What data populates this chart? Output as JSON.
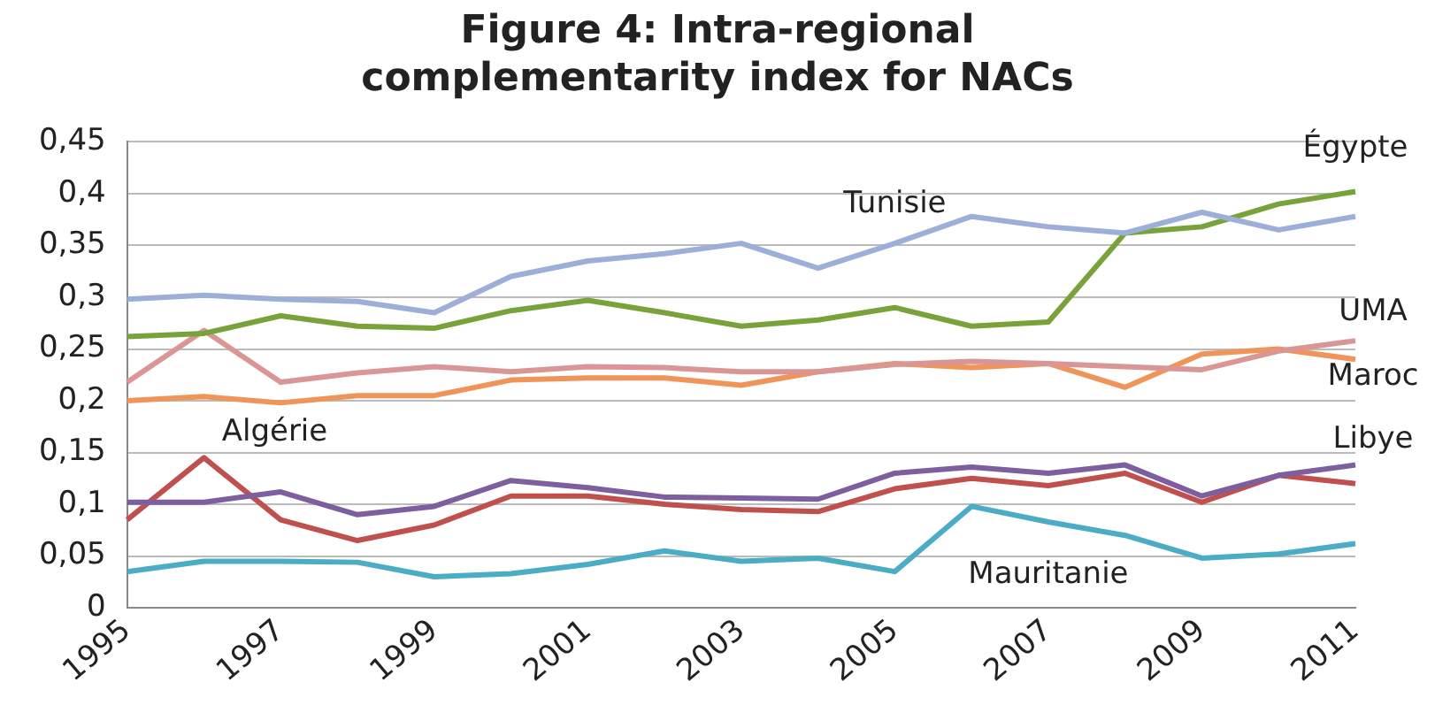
{
  "chart_data": {
    "type": "line",
    "title": "Figure 4: Intra-regional complementarity index for NACs",
    "categories": [
      "1995",
      null,
      "1997",
      null,
      "1999",
      null,
      "2001",
      null,
      "2003",
      null,
      "2005",
      null,
      "2007",
      null,
      "2009",
      null,
      "2011"
    ],
    "ylim": [
      0,
      0.45
    ],
    "yticks": [
      {
        "value": 0,
        "label": "0"
      },
      {
        "value": 0.05,
        "label": "0,05"
      },
      {
        "value": 0.1,
        "label": "0,1"
      },
      {
        "value": 0.15,
        "label": "0,15"
      },
      {
        "value": 0.2,
        "label": "0,2"
      },
      {
        "value": 0.25,
        "label": "0,25"
      },
      {
        "value": 0.3,
        "label": "0,3"
      },
      {
        "value": 0.35,
        "label": "0,35"
      },
      {
        "value": 0.4,
        "label": "0,4"
      },
      {
        "value": 0.45,
        "label": "0,45"
      }
    ],
    "grid": "y",
    "legend": false,
    "marker": "none",
    "line_style": "solid",
    "series": [
      {
        "name": "Tunisie",
        "color": "#9bafd8",
        "values": [
          0.298,
          0.302,
          0.298,
          0.296,
          0.285,
          0.32,
          0.335,
          0.342,
          0.352,
          0.328,
          0.352,
          0.378,
          0.368,
          0.362,
          0.382,
          0.365,
          0.378
        ]
      },
      {
        "name": "Égypte",
        "color": "#77a33a",
        "values": [
          0.262,
          0.265,
          0.282,
          0.272,
          0.27,
          0.287,
          0.297,
          0.285,
          0.272,
          0.278,
          0.29,
          0.272,
          0.276,
          0.362,
          0.368,
          0.39,
          0.402
        ]
      },
      {
        "name": "UMA",
        "color": "#d99694",
        "values": [
          0.218,
          0.268,
          0.218,
          0.227,
          0.233,
          0.228,
          0.233,
          0.232,
          0.228,
          0.228,
          0.235,
          0.238,
          0.236,
          0.233,
          0.23,
          0.248,
          0.258
        ]
      },
      {
        "name": "Maroc",
        "color": "#f0955a",
        "values": [
          0.2,
          0.204,
          0.198,
          0.205,
          0.205,
          0.22,
          0.222,
          0.222,
          0.215,
          0.228,
          0.236,
          0.232,
          0.236,
          0.213,
          0.245,
          0.25,
          0.24
        ]
      },
      {
        "name": "Libye",
        "color": "#7d5fa0",
        "values": [
          0.102,
          0.102,
          0.112,
          0.09,
          0.098,
          0.123,
          0.116,
          0.107,
          0.106,
          0.105,
          0.13,
          0.136,
          0.13,
          0.138,
          0.108,
          0.128,
          0.138
        ]
      },
      {
        "name": "Algérie",
        "color": "#c0504d",
        "values": [
          0.085,
          0.145,
          0.085,
          0.065,
          0.08,
          0.108,
          0.108,
          0.1,
          0.095,
          0.093,
          0.115,
          0.125,
          0.118,
          0.13,
          0.102,
          0.128,
          0.12
        ]
      },
      {
        "name": "Mauritanie",
        "color": "#4bacc6",
        "values": [
          0.035,
          0.045,
          0.045,
          0.044,
          0.03,
          0.033,
          0.042,
          0.055,
          0.045,
          0.048,
          0.035,
          0.098,
          0.083,
          0.07,
          0.048,
          0.052,
          0.062
        ]
      }
    ]
  }
}
